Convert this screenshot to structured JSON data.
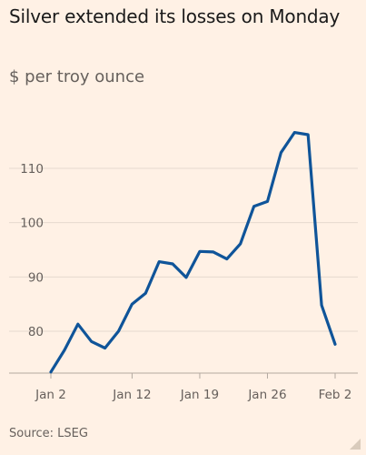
{
  "header": {
    "title": "Silver extended its losses on Monday",
    "subtitle": "$ per troy ounce"
  },
  "footer": {
    "source": "Source: LSEG"
  },
  "chart_data": {
    "type": "line",
    "title": "Silver extended its losses on Monday",
    "subtitle": "$ per troy ounce",
    "ylabel": "$ per troy ounce",
    "ylim": [
      70,
      120
    ],
    "yticks": [
      80,
      90,
      100,
      110
    ],
    "xticks": [
      {
        "label": "Jan 2",
        "index": 0
      },
      {
        "label": "Jan 12",
        "index": 6
      },
      {
        "label": "Jan 19",
        "index": 11
      },
      {
        "label": "Jan 26",
        "index": 16
      },
      {
        "label": "Feb 2",
        "index": 21
      }
    ],
    "grid": true,
    "series": [
      {
        "color": "#0f5499",
        "x": [
          "Jan 2",
          "Jan 5",
          "Jan 6",
          "Jan 7",
          "Jan 8",
          "Jan 9",
          "Jan 12",
          "Jan 13",
          "Jan 14",
          "Jan 15",
          "Jan 16",
          "Jan 19",
          "Jan 20",
          "Jan 21",
          "Jan 22",
          "Jan 23",
          "Jan 26",
          "Jan 27",
          "Jan 28",
          "Jan 29",
          "Jan 30",
          "Feb 2"
        ],
        "values": [
          72.5,
          76.5,
          81.3,
          78.1,
          76.9,
          80.0,
          85.0,
          87.0,
          92.8,
          92.4,
          89.9,
          94.7,
          94.6,
          93.3,
          96.1,
          103.0,
          103.9,
          112.9,
          116.6,
          116.2,
          84.8,
          77.6
        ]
      }
    ]
  }
}
